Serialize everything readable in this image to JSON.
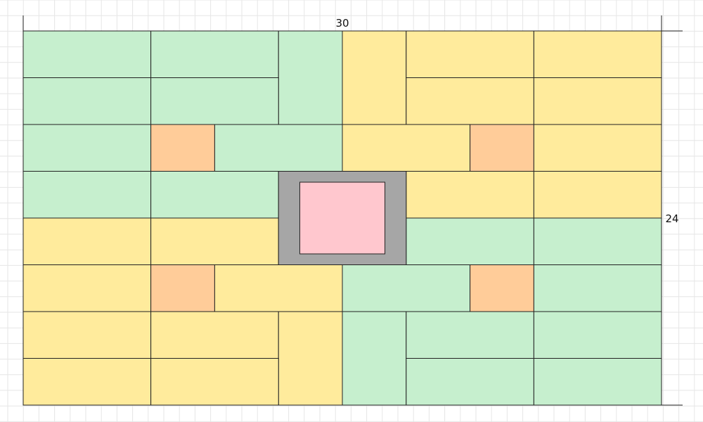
{
  "dimensions": {
    "width_label": "30",
    "height_label": "24"
  },
  "units": {
    "width": 30,
    "height": 24
  },
  "colors": {
    "green": "#c6efce",
    "yellow": "#ffeb9c",
    "orange": "#ffcc99",
    "gray": "#a6a6a6",
    "pink": "#ffc7ce",
    "grid": "#e6e6e6",
    "stroke": "#222222"
  },
  "tiles": [
    {
      "type": "green",
      "x": 0,
      "y": 0,
      "w": 6,
      "h": 3
    },
    {
      "type": "green",
      "x": 6,
      "y": 0,
      "w": 6,
      "h": 3
    },
    {
      "type": "green",
      "x": 12,
      "y": 0,
      "w": 3,
      "h": 6
    },
    {
      "type": "yellow",
      "x": 15,
      "y": 0,
      "w": 3,
      "h": 6
    },
    {
      "type": "yellow",
      "x": 18,
      "y": 0,
      "w": 6,
      "h": 3
    },
    {
      "type": "yellow",
      "x": 24,
      "y": 0,
      "w": 6,
      "h": 3
    },
    {
      "type": "green",
      "x": 0,
      "y": 3,
      "w": 6,
      "h": 3
    },
    {
      "type": "green",
      "x": 6,
      "y": 3,
      "w": 6,
      "h": 3
    },
    {
      "type": "yellow",
      "x": 18,
      "y": 3,
      "w": 6,
      "h": 3
    },
    {
      "type": "yellow",
      "x": 24,
      "y": 3,
      "w": 6,
      "h": 3
    },
    {
      "type": "green",
      "x": 0,
      "y": 6,
      "w": 6,
      "h": 3
    },
    {
      "type": "orange",
      "x": 6,
      "y": 6,
      "w": 3,
      "h": 3
    },
    {
      "type": "green",
      "x": 9,
      "y": 6,
      "w": 6,
      "h": 3
    },
    {
      "type": "yellow",
      "x": 15,
      "y": 6,
      "w": 6,
      "h": 3
    },
    {
      "type": "orange",
      "x": 21,
      "y": 6,
      "w": 3,
      "h": 3
    },
    {
      "type": "yellow",
      "x": 24,
      "y": 6,
      "w": 6,
      "h": 3
    },
    {
      "type": "green",
      "x": 0,
      "y": 9,
      "w": 6,
      "h": 3
    },
    {
      "type": "green",
      "x": 6,
      "y": 9,
      "w": 6,
      "h": 3
    },
    {
      "type": "yellow",
      "x": 18,
      "y": 9,
      "w": 6,
      "h": 3
    },
    {
      "type": "yellow",
      "x": 24,
      "y": 9,
      "w": 6,
      "h": 3
    },
    {
      "type": "yellow",
      "x": 0,
      "y": 12,
      "w": 6,
      "h": 3
    },
    {
      "type": "yellow",
      "x": 6,
      "y": 12,
      "w": 6,
      "h": 3
    },
    {
      "type": "green",
      "x": 18,
      "y": 12,
      "w": 6,
      "h": 3
    },
    {
      "type": "green",
      "x": 24,
      "y": 12,
      "w": 6,
      "h": 3
    },
    {
      "type": "yellow",
      "x": 0,
      "y": 15,
      "w": 6,
      "h": 3
    },
    {
      "type": "orange",
      "x": 6,
      "y": 15,
      "w": 3,
      "h": 3
    },
    {
      "type": "yellow",
      "x": 9,
      "y": 15,
      "w": 6,
      "h": 3
    },
    {
      "type": "green",
      "x": 15,
      "y": 15,
      "w": 6,
      "h": 3
    },
    {
      "type": "orange",
      "x": 21,
      "y": 15,
      "w": 3,
      "h": 3
    },
    {
      "type": "green",
      "x": 24,
      "y": 15,
      "w": 6,
      "h": 3
    },
    {
      "type": "yellow",
      "x": 0,
      "y": 18,
      "w": 6,
      "h": 3
    },
    {
      "type": "yellow",
      "x": 6,
      "y": 18,
      "w": 6,
      "h": 3
    },
    {
      "type": "yellow",
      "x": 12,
      "y": 18,
      "w": 3,
      "h": 6
    },
    {
      "type": "green",
      "x": 15,
      "y": 18,
      "w": 3,
      "h": 6
    },
    {
      "type": "green",
      "x": 18,
      "y": 18,
      "w": 6,
      "h": 3
    },
    {
      "type": "green",
      "x": 24,
      "y": 18,
      "w": 6,
      "h": 3
    },
    {
      "type": "yellow",
      "x": 0,
      "y": 21,
      "w": 6,
      "h": 3
    },
    {
      "type": "yellow",
      "x": 6,
      "y": 21,
      "w": 6,
      "h": 3
    },
    {
      "type": "green",
      "x": 18,
      "y": 21,
      "w": 6,
      "h": 3
    },
    {
      "type": "green",
      "x": 24,
      "y": 21,
      "w": 6,
      "h": 3
    }
  ],
  "center": {
    "frame": {
      "type": "gray",
      "x": 12,
      "y": 9,
      "w": 6,
      "h": 6
    },
    "inner": {
      "type": "pink",
      "x": 13,
      "y": 9.7,
      "w": 4,
      "h": 4.6
    }
  }
}
